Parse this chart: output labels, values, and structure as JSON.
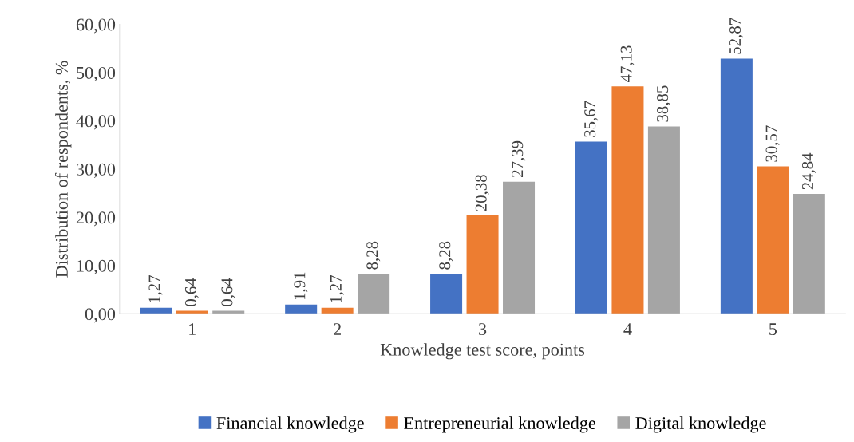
{
  "chart_data": {
    "type": "bar",
    "xlabel": "Knowledge test score, points",
    "ylabel": "Distribution of respondents, %",
    "categories": [
      "1",
      "2",
      "3",
      "4",
      "5"
    ],
    "ylim": [
      0,
      60
    ],
    "yticks": [
      {
        "value": 0,
        "label": "0,00"
      },
      {
        "value": 10,
        "label": "10,00"
      },
      {
        "value": 20,
        "label": "20,00"
      },
      {
        "value": 30,
        "label": "30,00"
      },
      {
        "value": 40,
        "label": "40,00"
      },
      {
        "value": 50,
        "label": "50,00"
      },
      {
        "value": 60,
        "label": "60,00"
      }
    ],
    "series": [
      {
        "name": "Financial knowledge",
        "color": "#4472c4",
        "values": [
          1.27,
          1.91,
          8.28,
          35.67,
          52.87
        ],
        "value_labels": [
          "1,27",
          "1,91",
          "8,28",
          "35,67",
          "52,87"
        ]
      },
      {
        "name": "Entrepreneurial knowledge",
        "color": "#ed7d31",
        "values": [
          0.64,
          1.27,
          20.38,
          47.13,
          30.57
        ],
        "value_labels": [
          "0,64",
          "1,27",
          "20,38",
          "47,13",
          "30,57"
        ]
      },
      {
        "name": "Digital knowledge",
        "color": "#a5a5a5",
        "values": [
          0.64,
          8.28,
          27.39,
          38.85,
          24.84
        ],
        "value_labels": [
          "0,64",
          "8,28",
          "27,39",
          "38,85",
          "24,84"
        ]
      }
    ],
    "legend": "bottom"
  }
}
